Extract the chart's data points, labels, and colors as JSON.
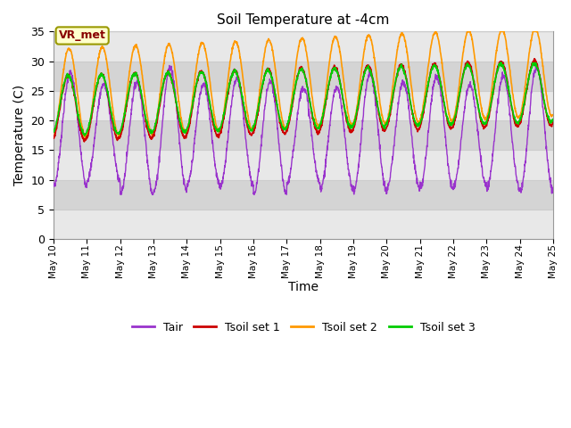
{
  "title": "Soil Temperature at -4cm",
  "xlabel": "Time",
  "ylabel": "Temperature (C)",
  "ylim": [
    0,
    35
  ],
  "yticks": [
    0,
    5,
    10,
    15,
    20,
    25,
    30,
    35
  ],
  "colors": {
    "Tair": "#9933cc",
    "Tsoil set 1": "#cc0000",
    "Tsoil set 2": "#ff9900",
    "Tsoil set 3": "#00cc00"
  },
  "legend_labels": [
    "Tair",
    "Tsoil set 1",
    "Tsoil set 2",
    "Tsoil set 3"
  ],
  "label_box_text": "VR_met",
  "label_box_bg": "#ffffcc",
  "label_box_edge": "#999900",
  "plot_bg_light": "#f0f0f0",
  "plot_bg_dark": "#d8d8d8",
  "fig_bg": "#ffffff",
  "grid_color": "#d0d0d0",
  "n_days": 15,
  "points_per_day": 144,
  "start_day": 10,
  "Tair_mean": 18.5,
  "Tair_amp": 9.5,
  "Tsoil1_mean": 22.0,
  "Tsoil1_amp": 5.5,
  "Tsoil2_mean": 24.5,
  "Tsoil2_amp": 7.5,
  "Tsoil3_mean": 22.5,
  "Tsoil3_amp": 5.0
}
